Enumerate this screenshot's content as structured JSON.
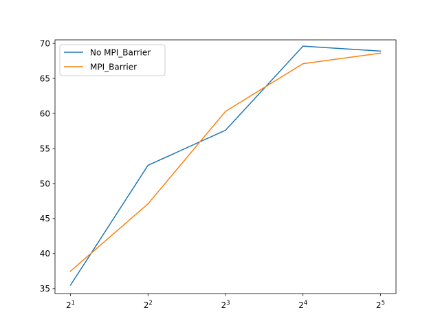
{
  "chart_data": {
    "type": "line",
    "title": "",
    "xlabel": "",
    "ylabel": "",
    "x_scale": "log2",
    "x": [
      2,
      4,
      8,
      16,
      32
    ],
    "x_tick_labels": [
      {
        "base": "2",
        "exp": "1"
      },
      {
        "base": "2",
        "exp": "2"
      },
      {
        "base": "2",
        "exp": "3"
      },
      {
        "base": "2",
        "exp": "4"
      },
      {
        "base": "2",
        "exp": "5"
      }
    ],
    "ylim": [
      34.3,
      70.5
    ],
    "y_ticks": [
      35,
      40,
      45,
      50,
      55,
      60,
      65,
      70
    ],
    "grid": false,
    "legend_position": "top-left",
    "series": [
      {
        "name": "No MPI_Barrier",
        "color": "#1f77b4",
        "values": [
          35.5,
          52.6,
          57.6,
          69.6,
          68.9
        ]
      },
      {
        "name": "MPI_Barrier",
        "color": "#ff7f0e",
        "values": [
          37.5,
          47.1,
          60.3,
          67.1,
          68.6
        ]
      }
    ]
  }
}
